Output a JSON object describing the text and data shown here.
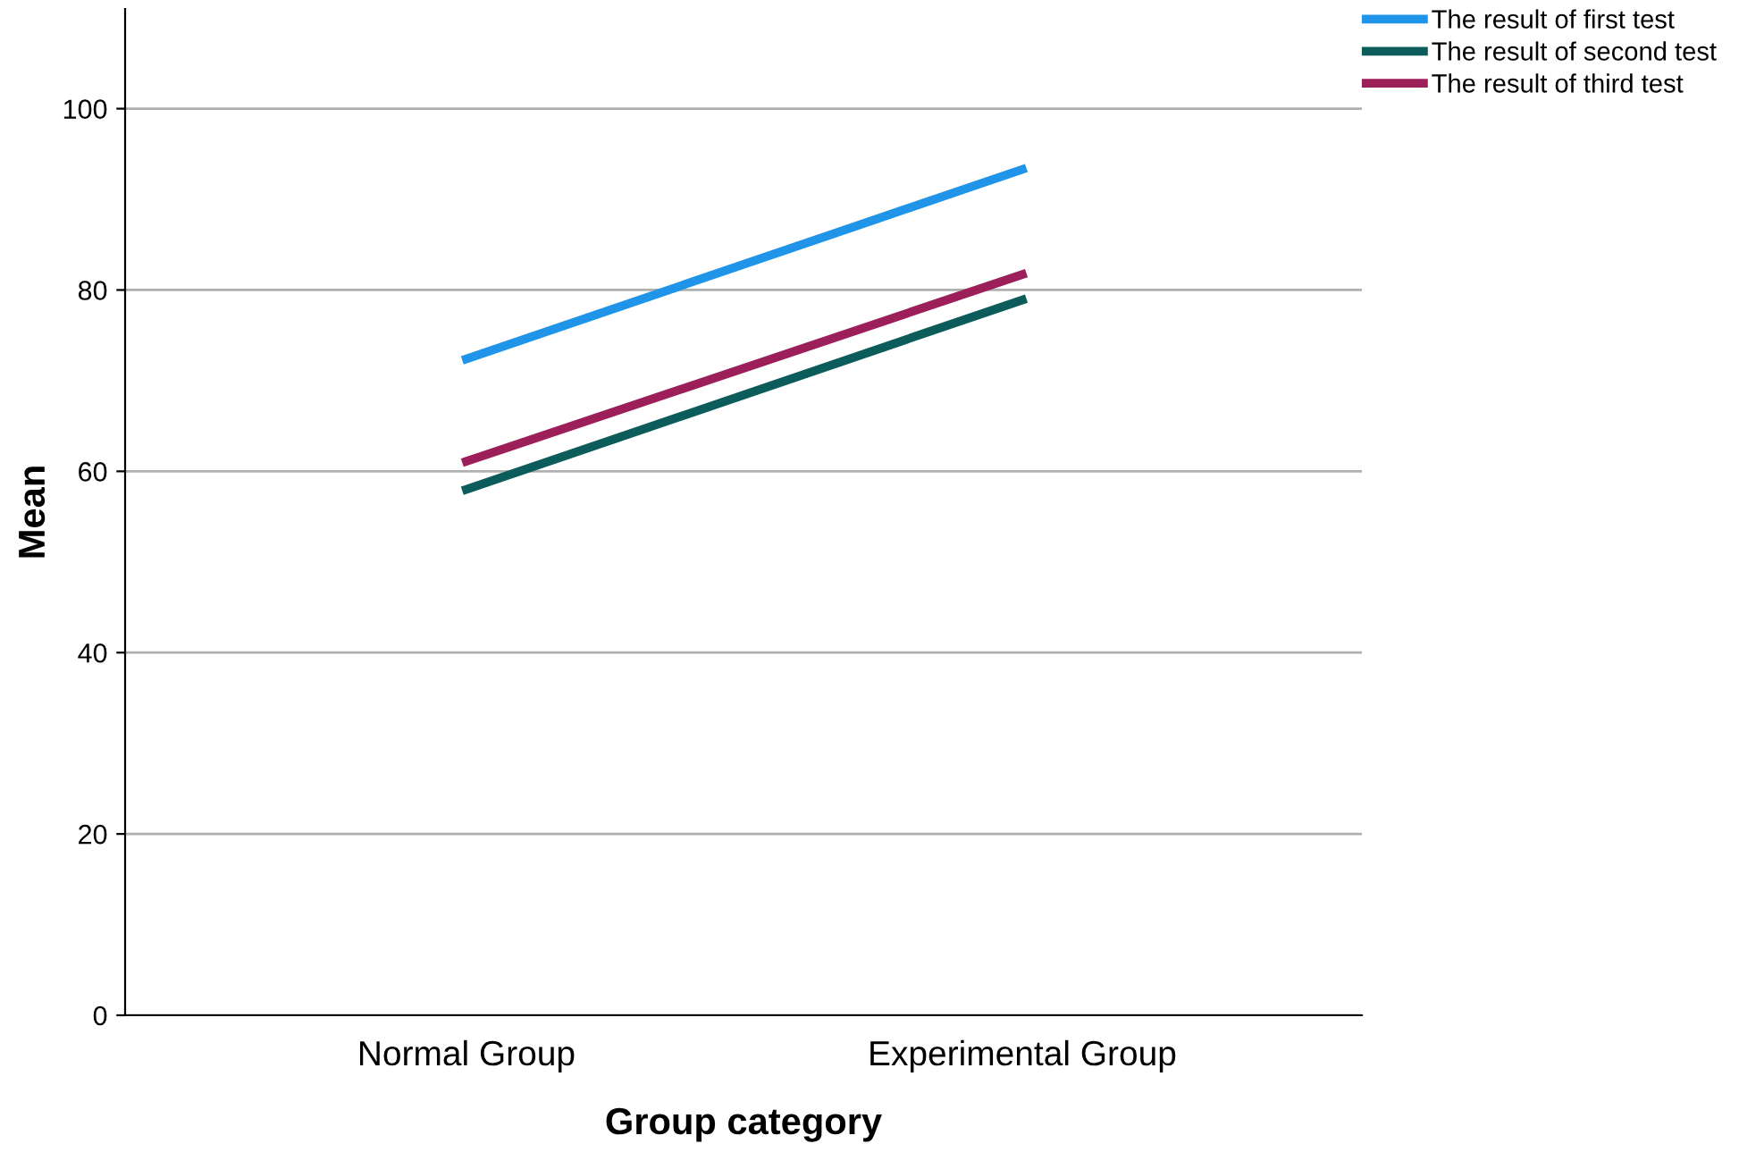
{
  "chart_data": {
    "type": "line",
    "xlabel": "Group category",
    "ylabel": "Mean",
    "categories": [
      "Normal Group",
      "Experimental Group"
    ],
    "series": [
      {
        "name": "The result of first test",
        "color": "#1f94e8",
        "values": [
          72.4,
          93.3
        ]
      },
      {
        "name": "The result of second test",
        "color": "#0b5c5a",
        "values": [
          58.0,
          78.9
        ]
      },
      {
        "name": "The result of third test",
        "color": "#9c1f5a",
        "values": [
          61.1,
          81.7
        ]
      }
    ],
    "ylim": [
      0,
      111
    ],
    "yticks": [
      0,
      20,
      40,
      60,
      80,
      100
    ],
    "grid": "y",
    "legend": "top right",
    "marker": "none",
    "line_style": "solid"
  }
}
